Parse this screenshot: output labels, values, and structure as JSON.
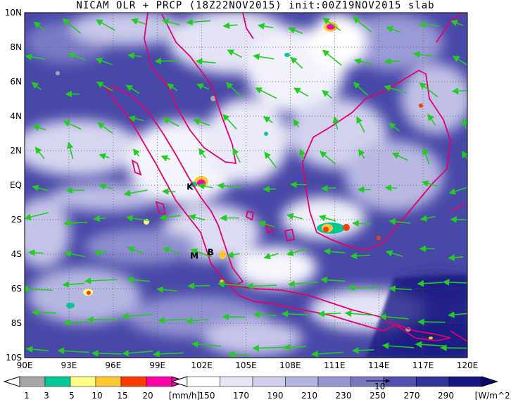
{
  "title": "NICAM OLR + PRCP (18Z22NOV2015) init:00Z19NOV2015 slab",
  "map": {
    "lon_range": [
      90,
      120
    ],
    "lat_range": [
      -10,
      10
    ],
    "x_ticks": [
      "90E",
      "93E",
      "96E",
      "99E",
      "102E",
      "105E",
      "108E",
      "111E",
      "114E",
      "117E",
      "120E"
    ],
    "y_ticks": [
      "10S",
      "8S",
      "6S",
      "4S",
      "2S",
      "EQ",
      "2N",
      "4N",
      "6N",
      "8N",
      "10N"
    ],
    "grid": "dotted",
    "places": [
      {
        "label": "K",
        "lon": 101.2,
        "lat": -0.1
      },
      {
        "label": "M",
        "lon": 101.5,
        "lat": -4.1
      },
      {
        "label": "B",
        "lon": 102.6,
        "lat": -3.9
      }
    ]
  },
  "precip_legend": {
    "ticks": [
      "1",
      "3",
      "5",
      "10",
      "15",
      "20"
    ],
    "unit": "[mm/h]",
    "colors": [
      "#a6a6a6",
      "#00c896",
      "#ffff88",
      "#ffc832",
      "#ff3c00",
      "#ff00aa"
    ]
  },
  "olr_legend": {
    "ticks": [
      "150",
      "170",
      "190",
      "210",
      "230",
      "250",
      "270",
      "290"
    ],
    "unit": "[W/m^2]",
    "colors": [
      "#ffffff",
      "#e6e6f5",
      "#cfcfeb",
      "#b4b4e0",
      "#9696d2",
      "#7878c4",
      "#5050b0",
      "#32329b",
      "#161680"
    ],
    "vector_ref": "10"
  },
  "colors": {
    "coast": "#e0006e",
    "wind": "#22cc22",
    "ocean_dark": "#1c1c86"
  }
}
